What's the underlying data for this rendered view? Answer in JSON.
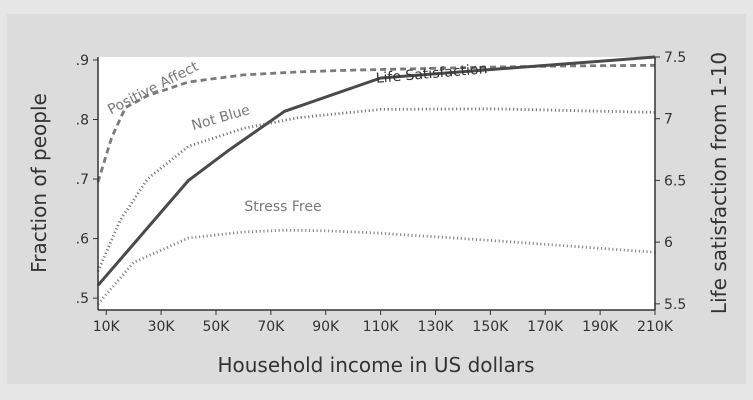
{
  "chart_data": {
    "type": "line",
    "xlabel": "Household income in US dollars",
    "ylabel_left": "Fraction of people",
    "ylabel_right": "Life satisfaction from 1-10",
    "x_ticks": [
      "10K",
      "30K",
      "50K",
      "70K",
      "90K",
      "110K",
      "130K",
      "150K",
      "170K",
      "190K",
      "210K"
    ],
    "xlim": [
      7,
      210
    ],
    "y_left_ticks": [
      ".5",
      ".6",
      ".7",
      ".8",
      ".9"
    ],
    "ylim_left": [
      0.48,
      0.905
    ],
    "y_right_ticks": [
      "5.5",
      "6",
      "6.5",
      "7",
      "7.5"
    ],
    "ylim_right": [
      5.45,
      7.5
    ],
    "grid": false,
    "series": [
      {
        "name": "Positive Affect",
        "axis": "left",
        "color": "#7a7a7a",
        "style": "dashed",
        "x": [
          7,
          12,
          17,
          25,
          40,
          60,
          80,
          100,
          120,
          150,
          180,
          210
        ],
        "y": [
          0.695,
          0.77,
          0.82,
          0.84,
          0.863,
          0.875,
          0.88,
          0.883,
          0.885,
          0.888,
          0.89,
          0.891
        ]
      },
      {
        "name": "Not Blue",
        "axis": "left",
        "color": "#7a7a7a",
        "style": "dotted",
        "x": [
          7,
          15,
          25,
          40,
          60,
          80,
          110,
          150,
          180,
          210
        ],
        "y": [
          0.545,
          0.63,
          0.7,
          0.755,
          0.785,
          0.803,
          0.817,
          0.818,
          0.815,
          0.812
        ]
      },
      {
        "name": "Stress Free",
        "axis": "left",
        "color": "#8a8a8a",
        "style": "dotted",
        "x": [
          7,
          20,
          40,
          60,
          75,
          90,
          110,
          150,
          180,
          210
        ],
        "y": [
          0.49,
          0.56,
          0.601,
          0.611,
          0.614,
          0.613,
          0.609,
          0.597,
          0.587,
          0.577
        ]
      },
      {
        "name": "Life Satisfaction",
        "axis": "right",
        "color": "#4a4a4a",
        "style": "solid",
        "x": [
          7,
          40,
          55,
          75,
          110,
          210
        ],
        "y": [
          5.65,
          6.5,
          6.75,
          7.06,
          7.33,
          7.5
        ]
      }
    ]
  }
}
